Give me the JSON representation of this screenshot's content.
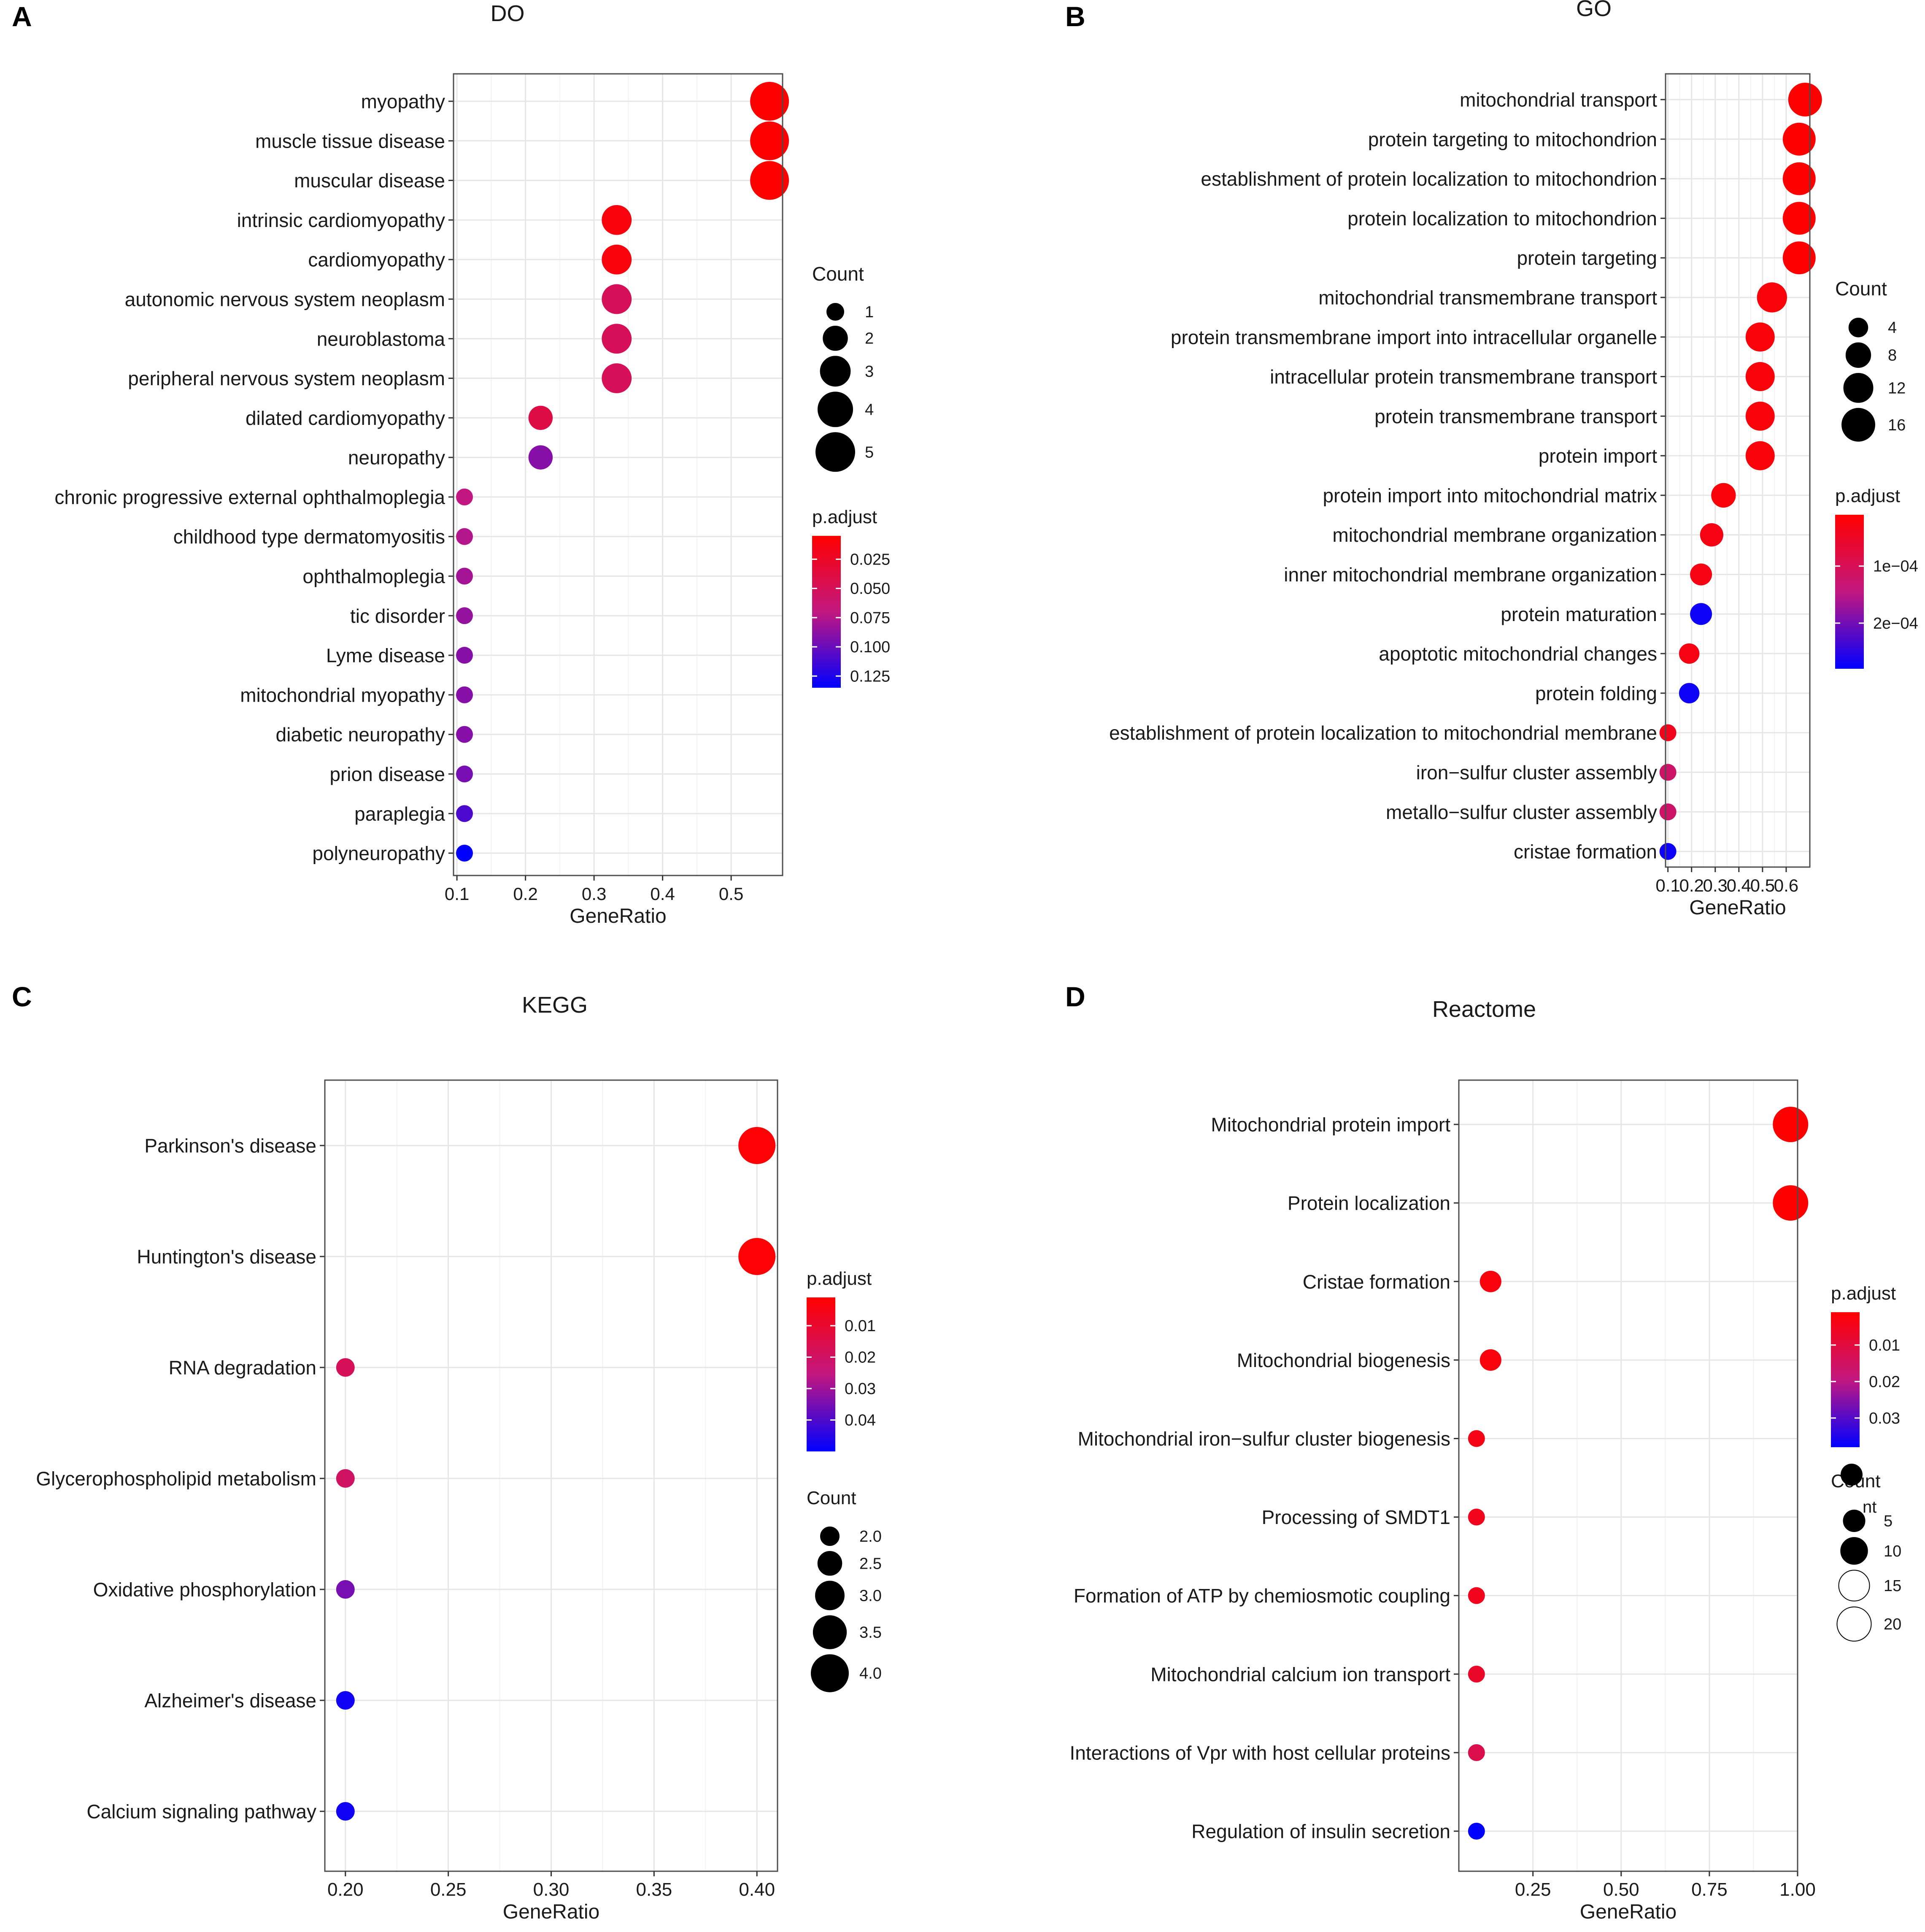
{
  "colors": {
    "high": "#ff0000",
    "mid": "#c21780",
    "low": "#0000ff",
    "panel_border": "#4d4d4d",
    "grid": "#e6e6e6",
    "text": "#1a1a1a"
  },
  "chart_data": [
    {
      "panel_label": "A",
      "type": "scatter",
      "title": "DO",
      "xlabel": "GeneRatio",
      "xlim": [
        0.095,
        0.575
      ],
      "xticks": [
        0.1,
        0.2,
        0.3,
        0.4,
        0.5
      ],
      "xtick_labels": [
        "0.1",
        "0.2",
        "0.3",
        "0.4",
        "0.5"
      ],
      "categories": [
        "myopathy",
        "muscle tissue disease",
        "muscular disease",
        "intrinsic cardiomyopathy",
        "cardiomyopathy",
        "autonomic nervous system neoplasm",
        "neuroblastoma",
        "peripheral nervous system neoplasm",
        "dilated cardiomyopathy",
        "neuropathy",
        "chronic progressive external ophthalmoplegia",
        "childhood type dermatomyositis",
        "ophthalmoplegia",
        "tic disorder",
        "Lyme disease",
        "mitochondrial myopathy",
        "diabetic neuropathy",
        "prion disease",
        "paraplegia",
        "polyneuropathy"
      ],
      "gene_ratio": [
        0.556,
        0.556,
        0.556,
        0.333,
        0.333,
        0.333,
        0.333,
        0.333,
        0.222,
        0.222,
        0.111,
        0.111,
        0.111,
        0.111,
        0.111,
        0.111,
        0.111,
        0.111,
        0.111,
        0.111
      ],
      "count": [
        5,
        5,
        5,
        3,
        3,
        3,
        3,
        3,
        2,
        2,
        1,
        1,
        1,
        1,
        1,
        1,
        1,
        1,
        1,
        1
      ],
      "p_adjust": [
        0.005,
        0.005,
        0.005,
        0.012,
        0.012,
        0.05,
        0.05,
        0.05,
        0.04,
        0.09,
        0.07,
        0.075,
        0.08,
        0.085,
        0.09,
        0.09,
        0.09,
        0.095,
        0.11,
        0.135
      ],
      "legends": [
        {
          "kind": "size",
          "title": "Count",
          "values": [
            1,
            2,
            3,
            4,
            5
          ],
          "labels": [
            "1",
            "2",
            "3",
            "4",
            "5"
          ]
        },
        {
          "kind": "color",
          "title": "p.adjust",
          "range": [
            0.005,
            0.135
          ],
          "values": [
            0.025,
            0.05,
            0.075,
            0.1,
            0.125
          ],
          "labels": [
            "0.025",
            "0.050",
            "0.075",
            "0.100",
            "0.125"
          ]
        }
      ]
    },
    {
      "panel_label": "B",
      "type": "scatter",
      "title": "GO",
      "xlabel": "GeneRatio",
      "xlim": [
        0.09,
        0.7
      ],
      "xticks": [
        0.1,
        0.2,
        0.3,
        0.4,
        0.5,
        0.6
      ],
      "xtick_labels": [
        "0.1",
        "0.2",
        "0.3",
        "0.4",
        "0.5",
        "0.6"
      ],
      "categories": [
        "mitochondrial transport",
        "protein targeting to mitochondrion",
        "establishment of protein localization to mitochondrion",
        "protein localization to mitochondrion",
        "protein targeting",
        "mitochondrial transmembrane transport",
        "protein transmembrane import into intracellular organelle",
        "intracellular protein transmembrane transport",
        "protein transmembrane transport",
        "protein import",
        "protein import into mitochondrial matrix",
        "mitochondrial membrane organization",
        "inner mitochondrial membrane organization",
        "protein maturation",
        "apoptotic mitochondrial changes",
        "protein folding",
        "establishment of protein localization to mitochondrial membrane",
        "iron−sulfur cluster assembly",
        "metallo−sulfur cluster assembly",
        "cristae formation"
      ],
      "gene_ratio": [
        0.68,
        0.655,
        0.655,
        0.655,
        0.655,
        0.54,
        0.49,
        0.49,
        0.49,
        0.49,
        0.335,
        0.285,
        0.24,
        0.24,
        0.19,
        0.19,
        0.1,
        0.1,
        0.1,
        0.1
      ],
      "count": [
        17,
        16,
        16,
        16,
        16,
        13,
        12,
        12,
        12,
        12,
        8,
        7,
        6,
        6,
        5,
        5,
        3,
        3,
        3,
        3
      ],
      "p_adjust": [
        1e-05,
        1e-05,
        1e-05,
        1e-05,
        1e-05,
        2e-05,
        2e-05,
        2e-05,
        2e-05,
        2e-05,
        2e-05,
        3e-05,
        3e-05,
        0.00027,
        3e-05,
        0.00027,
        4e-05,
        0.00012,
        0.00012,
        0.00027
      ],
      "legends": [
        {
          "kind": "size",
          "title": "Count",
          "values": [
            4,
            8,
            12,
            16
          ],
          "labels": [
            "4",
            "8",
            "12",
            "16"
          ]
        },
        {
          "kind": "color",
          "title": "p.adjust",
          "range": [
            1e-05,
            0.00028
          ],
          "values": [
            0.0001,
            0.0002
          ],
          "labels": [
            "1e−04",
            "2e−04"
          ]
        }
      ]
    },
    {
      "panel_label": "C",
      "type": "scatter",
      "title": "KEGG",
      "xlabel": "GeneRatio",
      "xlim": [
        0.19,
        0.41
      ],
      "xticks": [
        0.2,
        0.25,
        0.3,
        0.35,
        0.4
      ],
      "xtick_labels": [
        "0.20",
        "0.25",
        "0.30",
        "0.35",
        "0.40"
      ],
      "categories": [
        "Parkinson's disease",
        "Huntington's disease",
        "RNA degradation",
        "Glycerophospholipid metabolism",
        "Oxidative phosphorylation",
        "Alzheimer's disease",
        "Calcium signaling pathway"
      ],
      "gene_ratio": [
        0.4,
        0.4,
        0.2,
        0.2,
        0.2,
        0.2,
        0.2
      ],
      "count": [
        4,
        4,
        2,
        2,
        2,
        2,
        2
      ],
      "p_adjust": [
        0.002,
        0.002,
        0.018,
        0.02,
        0.035,
        0.048,
        0.048
      ],
      "legends": [
        {
          "kind": "color",
          "title": "p.adjust",
          "range": [
            0.001,
            0.05
          ],
          "values": [
            0.01,
            0.02,
            0.03,
            0.04
          ],
          "labels": [
            "0.01",
            "0.02",
            "0.03",
            "0.04"
          ]
        },
        {
          "kind": "size",
          "title": "Count",
          "values": [
            2.0,
            2.5,
            3.0,
            3.5,
            4.0
          ],
          "labels": [
            "2.0",
            "2.5",
            "3.0",
            "3.5",
            "4.0"
          ]
        }
      ]
    },
    {
      "panel_label": "D",
      "type": "scatter",
      "title": "Reactome",
      "xlabel": "GeneRatio",
      "xlim": [
        0.04,
        1.0
      ],
      "xticks": [
        0.25,
        0.5,
        0.75,
        1.0
      ],
      "xtick_labels": [
        "0.25",
        "0.50",
        "0.75",
        "1.00"
      ],
      "categories": [
        "Mitochondrial protein import",
        "Protein localization",
        "Cristae formation",
        "Mitochondrial biogenesis",
        "Mitochondrial iron−sulfur cluster biogenesis",
        "Processing of SMDT1",
        "Formation of ATP by chemiosmotic coupling",
        "Mitochondrial calcium ion transport",
        "Interactions of Vpr with host cellular proteins",
        "Regulation of insulin secretion"
      ],
      "gene_ratio": [
        0.98,
        0.98,
        0.13,
        0.13,
        0.09,
        0.09,
        0.09,
        0.09,
        0.09,
        0.09
      ],
      "count": [
        22,
        22,
        5,
        5,
        2,
        2,
        2,
        2,
        2,
        2
      ],
      "p_adjust": [
        0.001,
        0.001,
        0.003,
        0.003,
        0.004,
        0.005,
        0.005,
        0.007,
        0.012,
        0.038
      ],
      "legends": [
        {
          "kind": "color",
          "title": "p.adjust",
          "range": [
            0.001,
            0.038
          ],
          "values": [
            0.01,
            0.02,
            0.03
          ],
          "labels": [
            "0.01",
            "0.02",
            "0.03"
          ]
        },
        {
          "kind": "size",
          "title": "Count",
          "values": [
            5,
            10,
            15,
            20
          ],
          "labels": [
            "5",
            "10",
            "15",
            "20"
          ],
          "overlap_fragment": "nt"
        }
      ]
    }
  ]
}
